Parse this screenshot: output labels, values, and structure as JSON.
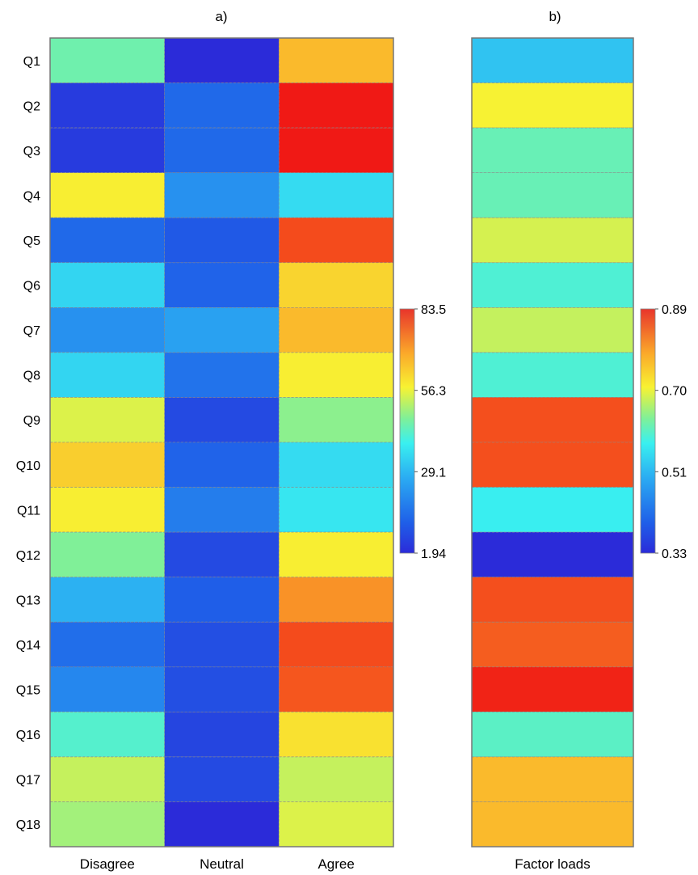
{
  "chart_data": [
    {
      "type": "heatmap",
      "panel_label": "a)",
      "rows": [
        "Q1",
        "Q2",
        "Q3",
        "Q4",
        "Q5",
        "Q6",
        "Q7",
        "Q8",
        "Q9",
        "Q10",
        "Q11",
        "Q12",
        "Q13",
        "Q14",
        "Q15",
        "Q16",
        "Q17",
        "Q18"
      ],
      "columns": [
        "Disagree",
        "Neutral",
        "Agree"
      ],
      "values": [
        [
          45,
          2,
          66
        ],
        [
          5,
          14,
          83
        ],
        [
          5,
          14,
          83
        ],
        [
          58,
          22,
          35
        ],
        [
          14,
          11,
          78
        ],
        [
          34,
          13,
          62
        ],
        [
          22,
          25,
          66
        ],
        [
          34,
          16,
          58
        ],
        [
          55,
          8,
          48
        ],
        [
          63,
          13,
          35
        ],
        [
          58,
          18,
          37
        ],
        [
          47,
          8,
          58
        ],
        [
          28,
          12,
          71
        ],
        [
          15,
          9,
          78
        ],
        [
          20,
          9,
          77
        ],
        [
          42,
          7,
          60
        ],
        [
          53,
          8,
          53
        ],
        [
          50,
          2,
          55
        ]
      ],
      "colorbar": {
        "min": 1.94,
        "max": 83.5,
        "ticks": [
          "83.5",
          "56.3",
          "29.1",
          "1.94"
        ]
      }
    },
    {
      "type": "heatmap",
      "panel_label": "b)",
      "rows": [
        "Q1",
        "Q2",
        "Q3",
        "Q4",
        "Q5",
        "Q6",
        "Q7",
        "Q8",
        "Q9",
        "Q10",
        "Q11",
        "Q12",
        "Q13",
        "Q14",
        "Q15",
        "Q16",
        "Q17",
        "Q18"
      ],
      "columns": [
        "Factor loads"
      ],
      "values": [
        [
          0.53
        ],
        [
          0.71
        ],
        [
          0.62
        ],
        [
          0.62
        ],
        [
          0.69
        ],
        [
          0.6
        ],
        [
          0.68
        ],
        [
          0.6
        ],
        [
          0.85
        ],
        [
          0.85
        ],
        [
          0.58
        ],
        [
          0.33
        ],
        [
          0.85
        ],
        [
          0.84
        ],
        [
          0.88
        ],
        [
          0.61
        ],
        [
          0.77
        ],
        [
          0.77
        ]
      ],
      "colorbar": {
        "min": 0.33,
        "max": 0.89,
        "ticks": [
          "0.89",
          "0.70",
          "0.51",
          "0.33"
        ]
      }
    }
  ]
}
